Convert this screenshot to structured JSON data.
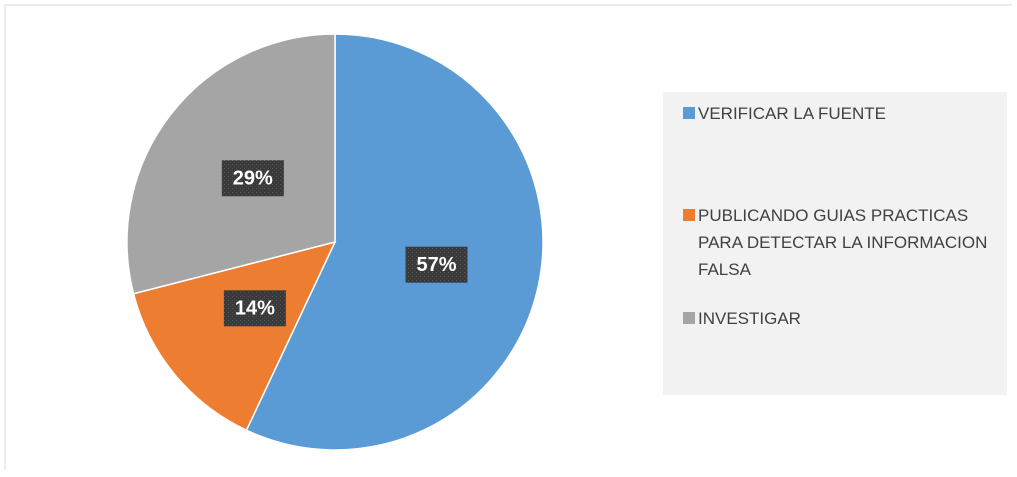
{
  "chart_data": {
    "type": "pie",
    "categories": [
      "VERIFICAR LA FUENTE",
      "PUBLICANDO GUIAS PRACTICAS PARA DETECTAR LA INFORMACION FALSA",
      "INVESTIGAR"
    ],
    "values": [
      57,
      14,
      29
    ],
    "value_labels": [
      "57%",
      "14%",
      "29%"
    ],
    "colors": [
      "#5b9bd5",
      "#ed7d31",
      "#a5a5a5"
    ],
    "legend": "right"
  }
}
